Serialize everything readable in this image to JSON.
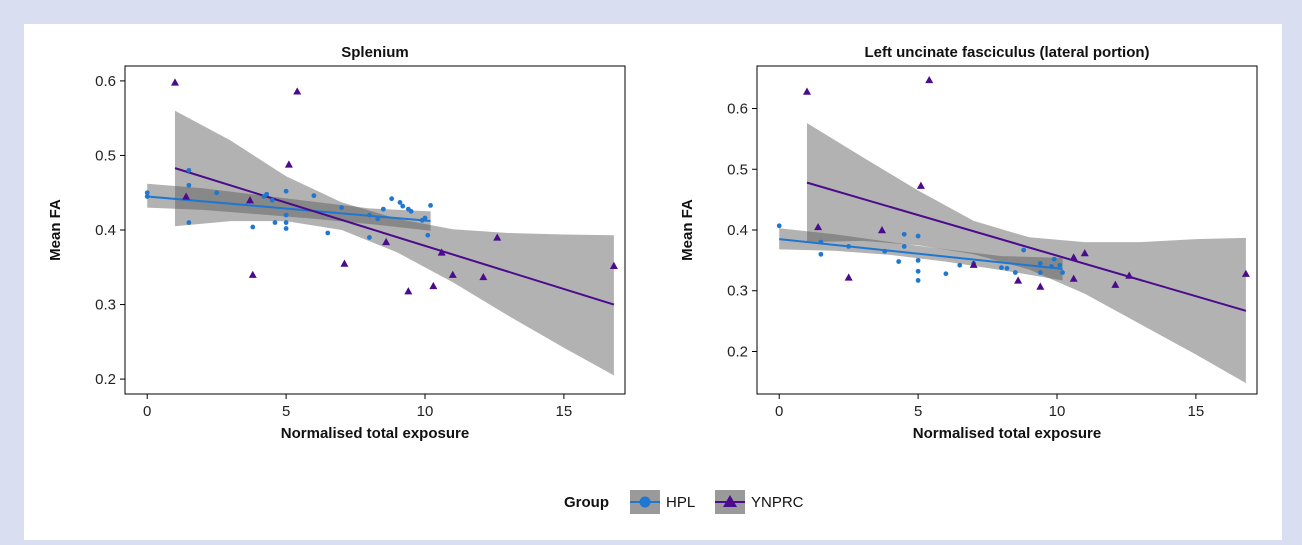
{
  "legend": {
    "title": "Group",
    "items": [
      {
        "label": "HPL",
        "color": "#1f77d0",
        "marker": "circle"
      },
      {
        "label": "YNPRC",
        "color": "#4b0b8c",
        "marker": "triangle"
      }
    ]
  },
  "chart_data": [
    {
      "type": "scatter",
      "title": "Splenium",
      "xlabel": "Normalised total exposure",
      "ylabel": "Mean FA",
      "xlim": [
        -0.8,
        17.2
      ],
      "ylim": [
        0.18,
        0.62
      ],
      "xticks": [
        0,
        5,
        10,
        15
      ],
      "yticks": [
        0.2,
        0.3,
        0.4,
        0.5,
        0.6
      ],
      "grid": false,
      "series": [
        {
          "name": "HPL",
          "points": [
            [
              0,
              0.45
            ],
            [
              0,
              0.445
            ],
            [
              1.5,
              0.48
            ],
            [
              1.5,
              0.46
            ],
            [
              1.5,
              0.41
            ],
            [
              2.5,
              0.45
            ],
            [
              3.8,
              0.404
            ],
            [
              4.2,
              0.445
            ],
            [
              4.3,
              0.448
            ],
            [
              4.5,
              0.44
            ],
            [
              4.6,
              0.41
            ],
            [
              5,
              0.452
            ],
            [
              5,
              0.42
            ],
            [
              5,
              0.41
            ],
            [
              5,
              0.402
            ],
            [
              6,
              0.446
            ],
            [
              6.5,
              0.396
            ],
            [
              7,
              0.43
            ],
            [
              8,
              0.42
            ],
            [
              8,
              0.39
            ],
            [
              8.3,
              0.415
            ],
            [
              8.5,
              0.428
            ],
            [
              8.8,
              0.442
            ],
            [
              9.1,
              0.437
            ],
            [
              9.2,
              0.432
            ],
            [
              9.4,
              0.428
            ],
            [
              9.5,
              0.425
            ],
            [
              9.9,
              0.413
            ],
            [
              10,
              0.416
            ],
            [
              10.1,
              0.393
            ],
            [
              10.2,
              0.433
            ]
          ],
          "fit": {
            "x": [
              0,
              10.2
            ],
            "y": [
              0.445,
              0.412
            ]
          },
          "ci": {
            "x": [
              0,
              2,
              4,
              6,
              8,
              10.2
            ],
            "lower": [
              0.43,
              0.427,
              0.421,
              0.415,
              0.408,
              0.399
            ],
            "upper": [
              0.462,
              0.456,
              0.447,
              0.438,
              0.429,
              0.425
            ]
          }
        },
        {
          "name": "YNPRC",
          "points": [
            [
              1,
              0.598
            ],
            [
              1.4,
              0.445
            ],
            [
              3.7,
              0.44
            ],
            [
              3.8,
              0.34
            ],
            [
              5.1,
              0.488
            ],
            [
              5.4,
              0.586
            ],
            [
              7.1,
              0.355
            ],
            [
              8.6,
              0.384
            ],
            [
              9.4,
              0.318
            ],
            [
              10.3,
              0.325
            ],
            [
              10.6,
              0.37
            ],
            [
              11,
              0.34
            ],
            [
              12.1,
              0.337
            ],
            [
              12.6,
              0.39
            ],
            [
              16.8,
              0.352
            ]
          ],
          "fit": {
            "x": [
              1,
              16.8
            ],
            "y": [
              0.483,
              0.3
            ]
          },
          "ci": {
            "x": [
              1,
              3,
              5,
              7,
              9,
              11,
              13,
              15,
              16.8
            ],
            "lower": [
              0.405,
              0.412,
              0.412,
              0.4,
              0.37,
              0.33,
              0.285,
              0.242,
              0.205
            ],
            "upper": [
              0.56,
              0.52,
              0.472,
              0.437,
              0.415,
              0.401,
              0.396,
              0.394,
              0.393
            ]
          }
        }
      ]
    },
    {
      "type": "scatter",
      "title": "Left uncinate fasciculus (lateral portion)",
      "xlabel": "Normalised total exposure",
      "ylabel": "Mean FA",
      "xlim": [
        -0.8,
        17.2
      ],
      "ylim": [
        0.13,
        0.67
      ],
      "xticks": [
        0,
        5,
        10,
        15
      ],
      "yticks": [
        0.2,
        0.3,
        0.4,
        0.5,
        0.6
      ],
      "grid": false,
      "series": [
        {
          "name": "HPL",
          "points": [
            [
              0,
              0.407
            ],
            [
              1.5,
              0.38
            ],
            [
              1.5,
              0.36
            ],
            [
              2.5,
              0.373
            ],
            [
              3.8,
              0.365
            ],
            [
              4.3,
              0.348
            ],
            [
              4.5,
              0.393
            ],
            [
              4.5,
              0.373
            ],
            [
              5,
              0.39
            ],
            [
              5,
              0.35
            ],
            [
              5,
              0.332
            ],
            [
              5,
              0.317
            ],
            [
              6,
              0.328
            ],
            [
              6.5,
              0.342
            ],
            [
              7,
              0.345
            ],
            [
              8,
              0.338
            ],
            [
              8.2,
              0.337
            ],
            [
              8.5,
              0.33
            ],
            [
              8.8,
              0.367
            ],
            [
              9.4,
              0.345
            ],
            [
              9.4,
              0.33
            ],
            [
              9.8,
              0.34
            ],
            [
              9.9,
              0.352
            ],
            [
              10.1,
              0.342
            ],
            [
              10.2,
              0.33
            ]
          ],
          "fit": {
            "x": [
              0,
              10.2
            ],
            "y": [
              0.385,
              0.336
            ]
          },
          "ci": {
            "x": [
              0,
              2,
              4,
              6,
              8,
              10.2
            ],
            "lower": [
              0.368,
              0.366,
              0.359,
              0.348,
              0.334,
              0.317
            ],
            "upper": [
              0.403,
              0.393,
              0.38,
              0.368,
              0.357,
              0.354
            ]
          }
        },
        {
          "name": "YNPRC",
          "points": [
            [
              1,
              0.628
            ],
            [
              1.4,
              0.405
            ],
            [
              2.5,
              0.322
            ],
            [
              3.7,
              0.4
            ],
            [
              5.1,
              0.473
            ],
            [
              5.4,
              0.647
            ],
            [
              7,
              0.343
            ],
            [
              8.6,
              0.317
            ],
            [
              9.4,
              0.307
            ],
            [
              10.6,
              0.32
            ],
            [
              10.6,
              0.355
            ],
            [
              11,
              0.362
            ],
            [
              12.1,
              0.31
            ],
            [
              12.6,
              0.325
            ],
            [
              16.8,
              0.328
            ]
          ],
          "fit": {
            "x": [
              1,
              16.8
            ],
            "y": [
              0.478,
              0.267
            ]
          },
          "ci": {
            "x": [
              1,
              3,
              5,
              7,
              9,
              11,
              13,
              15,
              16.8
            ],
            "lower": [
              0.38,
              0.382,
              0.375,
              0.36,
              0.335,
              0.295,
              0.245,
              0.195,
              0.148
            ],
            "upper": [
              0.576,
              0.52,
              0.465,
              0.415,
              0.388,
              0.38,
              0.38,
              0.385,
              0.387
            ]
          }
        }
      ]
    }
  ]
}
